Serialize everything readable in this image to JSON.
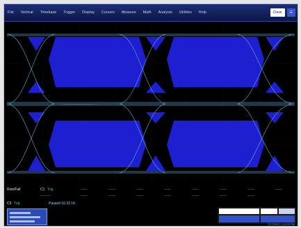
{
  "window": {
    "menu": [
      "File",
      "Vertical",
      "Timebase",
      "Trigger",
      "Display",
      "Cursors",
      "Measure",
      "Math",
      "Analysis",
      "Utilities",
      "Help"
    ],
    "close_button": "Close",
    "accent": "#1c2f79"
  },
  "display": {
    "background_color": "#000000",
    "eye_fill_color": "#1f1fd2",
    "trace_color": "#62a7d0"
  },
  "info": {
    "trigger_label": "Rise/Fall",
    "channel_label": "C1",
    "channel_status": "Trig",
    "channel_line": "C3",
    "timebase_text": "Paused  16 33 14",
    "timestamp": "7/27/2010 1:11:52 PM"
  }
}
